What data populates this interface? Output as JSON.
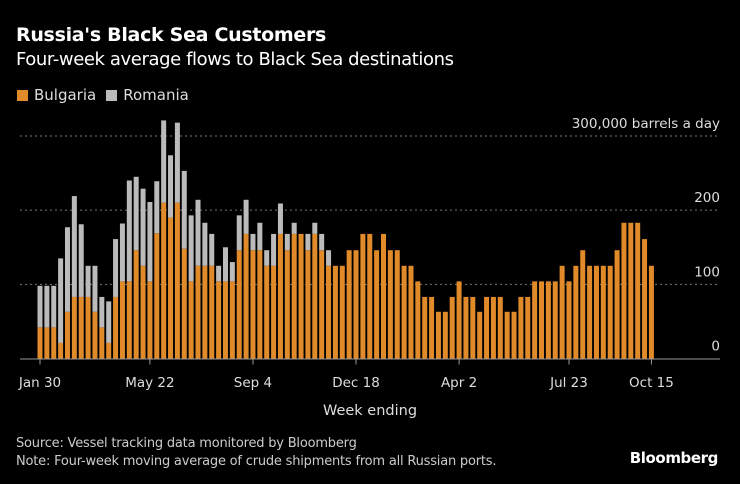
{
  "header": {
    "title": "Russia's Black Sea Customers",
    "subtitle": "Four-week average flows to Black Sea destinations"
  },
  "legend": [
    {
      "label": "Bulgaria",
      "color": "#e08a2a"
    },
    {
      "label": "Romania",
      "color": "#bbbbbb"
    }
  ],
  "footer": {
    "source": "Source: Vessel tracking data monitored by Bloomberg",
    "note": "Note: Four-week moving average of crude shipments from all Russian ports.",
    "brand": "Bloomberg"
  },
  "chart_data": {
    "type": "bar",
    "stacked": true,
    "title": "Russia's Black Sea Customers",
    "subtitle": "Four-week average flows to Black Sea destinations",
    "xlabel": "Week ending",
    "ylabel": "",
    "y_unit_label": "300,000 barrels a day",
    "ylim": [
      0,
      300
    ],
    "yticks": [
      0,
      100,
      200,
      300
    ],
    "ytick_labels": [
      "0",
      "100",
      "200",
      "300,000 barrels a day"
    ],
    "grid": true,
    "legend_position": "top-left",
    "x_ticks": [
      {
        "index": 0,
        "label": "Jan 30"
      },
      {
        "index": 16,
        "label": "May 22"
      },
      {
        "index": 31,
        "label": "Sep 4"
      },
      {
        "index": 46,
        "label": "Dec 18"
      },
      {
        "index": 61,
        "label": "Apr 2"
      },
      {
        "index": 77,
        "label": "Jul 23"
      },
      {
        "index": 89,
        "label": "Oct 15"
      }
    ],
    "n_weeks": 90,
    "series": [
      {
        "name": "Bulgaria",
        "color": "#e08a2a",
        "values": [
          42,
          42,
          42,
          21,
          63,
          83,
          83,
          83,
          63,
          42,
          21,
          83,
          104,
          104,
          146,
          125,
          104,
          169,
          210,
          190,
          210,
          148,
          104,
          125,
          125,
          125,
          104,
          104,
          104,
          146,
          168,
          146,
          146,
          125,
          125,
          168,
          146,
          168,
          168,
          146,
          168,
          146,
          125,
          125,
          125,
          146,
          146,
          168,
          168,
          146,
          168,
          146,
          146,
          125,
          125,
          104,
          83,
          83,
          63,
          63,
          83,
          104,
          83,
          83,
          63,
          83,
          83,
          83,
          63,
          63,
          83,
          83,
          104,
          104,
          104,
          104,
          125,
          104,
          125,
          146,
          125,
          125,
          125,
          125,
          146,
          183,
          183,
          183,
          161,
          125
        ]
      },
      {
        "name": "Romania",
        "color": "#bbbbbb",
        "values": [
          56,
          56,
          56,
          114,
          114,
          136,
          98,
          42,
          62,
          41,
          56,
          78,
          78,
          136,
          99,
          104,
          107,
          70,
          111,
          84,
          108,
          105,
          89,
          89,
          58,
          43,
          21,
          46,
          26,
          47,
          46,
          22,
          37,
          21,
          43,
          41,
          22,
          15,
          0,
          22,
          15,
          22,
          21,
          0,
          0,
          0,
          0,
          0,
          0,
          0,
          0,
          0,
          0,
          0,
          0,
          0,
          0,
          0,
          0,
          0,
          0,
          0,
          0,
          0,
          0,
          0,
          0,
          0,
          0,
          0,
          0,
          0,
          0,
          0,
          0,
          0,
          0,
          0,
          0,
          0,
          0,
          0,
          0,
          0,
          0,
          0,
          0,
          0,
          0,
          0
        ]
      }
    ]
  }
}
